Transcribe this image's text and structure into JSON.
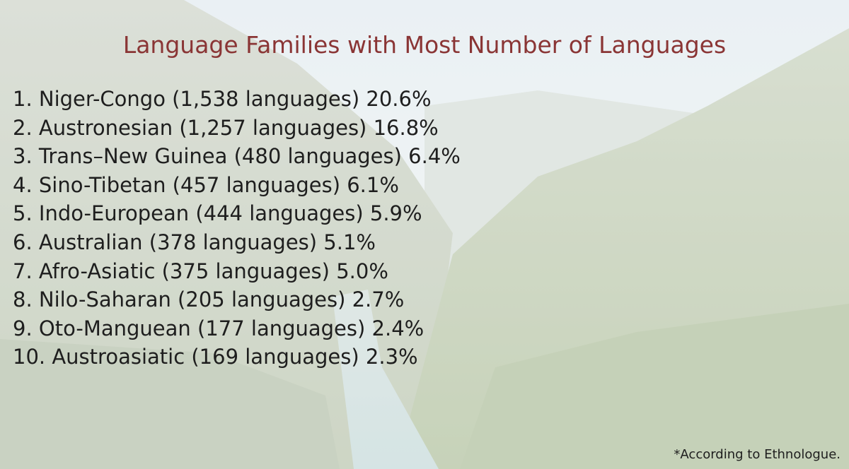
{
  "title": "Language Families with Most Number of Languages",
  "items": [
    "1. Niger-Congo (1,538 languages) 20.6%",
    "2. Austronesian (1,257 languages) 16.8%",
    "3. Trans–New Guinea (480 languages) 6.4%",
    "4. Sino-Tibetan (457 languages) 6.1%",
    "5. Indo-European (444 languages) 5.9%",
    "6. Australian (378 languages) 5.1%",
    "7. Afro-Asiatic (375 languages) 5.0%",
    "8. Nilo-Saharan (205 languages) 2.7%",
    "9. Oto-Manguean (177 languages) 2.4%",
    "10. Austroasiatic (169 languages) 2.3%"
  ],
  "footnote": "*According to Ethnologue."
}
